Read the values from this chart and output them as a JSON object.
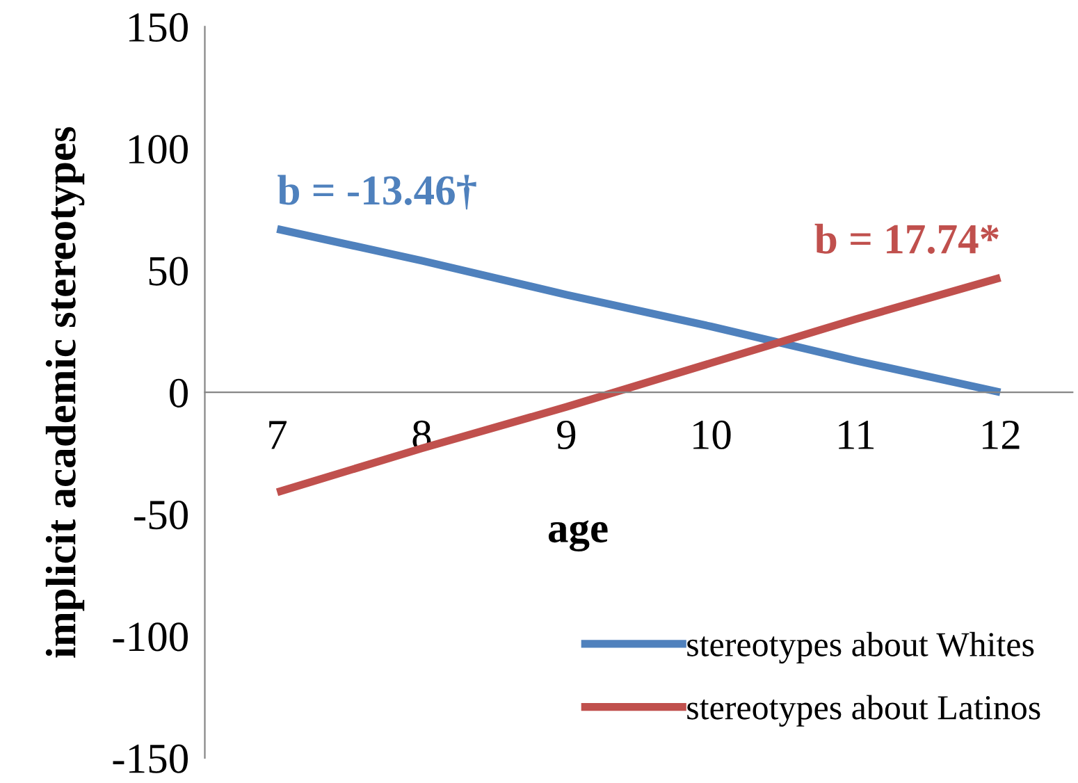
{
  "chart_data": {
    "type": "line",
    "xlabel": "age",
    "ylabel": "implicit academic stereotypes",
    "categories": [
      "7",
      "8",
      "9",
      "10",
      "11",
      "12"
    ],
    "series": [
      {
        "name": "stereotypes about Whites",
        "color": "#4f81bd",
        "values": [
          67,
          54,
          40,
          27,
          13,
          0
        ]
      },
      {
        "name": "stereotypes about Latinos",
        "color": "#c0504d",
        "values": [
          -41,
          -23,
          -6,
          12,
          30,
          47
        ]
      }
    ],
    "ylim": [
      -150,
      150
    ],
    "yticks": [
      -150,
      -100,
      -50,
      0,
      50,
      100,
      150
    ],
    "annotations": [
      {
        "text": "b = -13.46†",
        "x": "7",
        "y": 67
      },
      {
        "text": "b = 17.74*",
        "x": "12",
        "y": 47
      }
    ],
    "grid": false,
    "legend": "bottom right",
    "marker": "none",
    "line_style": "solid"
  }
}
